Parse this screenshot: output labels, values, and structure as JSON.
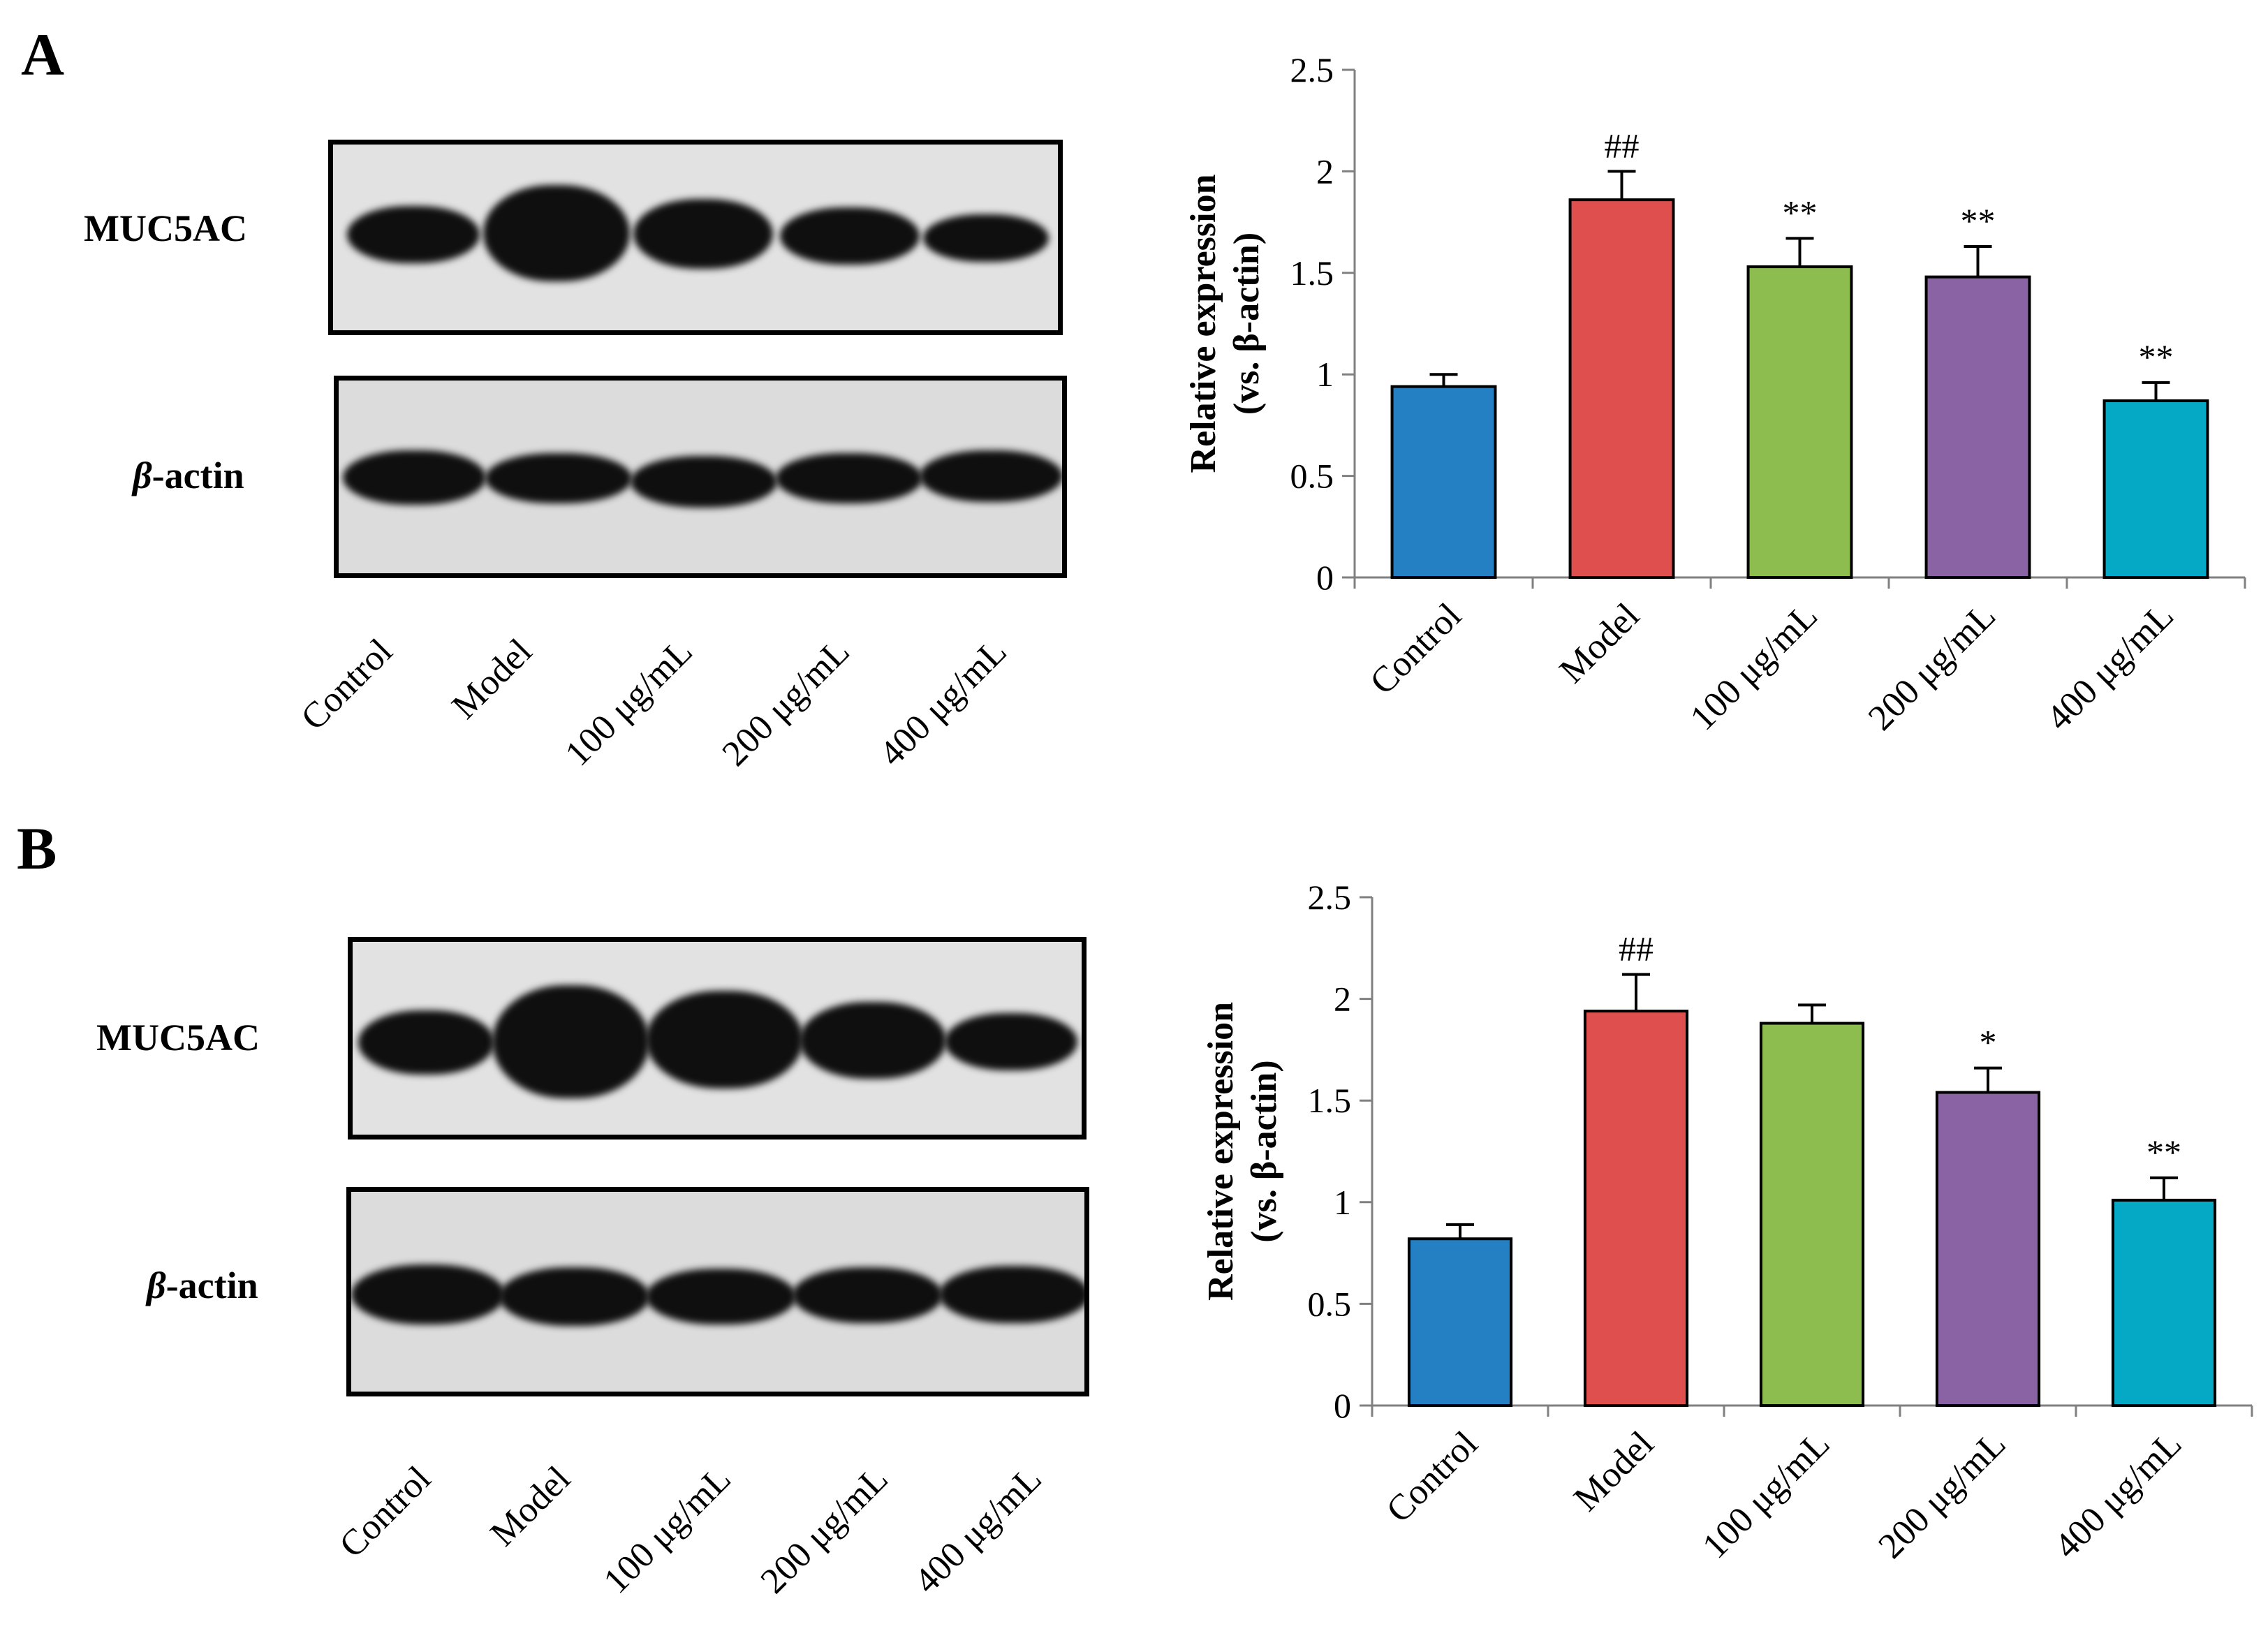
{
  "panels": [
    {
      "letter": "A",
      "blot": {
        "row_labels": {
          "muc5ac": "MUC5AC",
          "actin_prefix": "β",
          "actin_suffix": "-actin"
        },
        "lanes": [
          "Control",
          "Model",
          "100 μg/mL",
          "200 μg/mL",
          "400 μg/mL"
        ]
      }
    },
    {
      "letter": "B",
      "blot": {
        "row_labels": {
          "muc5ac": "MUC5AC",
          "actin_prefix": "β",
          "actin_suffix": "-actin"
        },
        "lanes": [
          "Control",
          "Model",
          "100 μg/mL",
          "200 μg/mL",
          "400 μg/mL"
        ]
      }
    }
  ],
  "chart_data": [
    {
      "type": "bar",
      "panel": "A",
      "categories": [
        "Control",
        "Model",
        "100 μg/mL",
        "200 μg/mL",
        "400 μg/mL"
      ],
      "values": [
        0.94,
        1.86,
        1.53,
        1.48,
        0.87
      ],
      "errors": [
        0.06,
        0.14,
        0.14,
        0.15,
        0.09
      ],
      "annotations": [
        "",
        "##",
        "**",
        "**",
        "**"
      ],
      "colors": [
        "#2580c3",
        "#df4f4e",
        "#8ebd4f",
        "#8a63a5",
        "#05a9c6"
      ],
      "ylabel_line1": "Relative expression",
      "ylabel_line2": "(vs. β-actin)",
      "ylim": [
        0,
        2.5
      ],
      "yticks": [
        0,
        0.5,
        1,
        1.5,
        2,
        2.5
      ],
      "ytick_labels": [
        "0",
        "0.5",
        "1",
        "1.5",
        "2",
        "2.5"
      ],
      "grid": false
    },
    {
      "type": "bar",
      "panel": "B",
      "categories": [
        "Control",
        "Model",
        "100 μg/mL",
        "200 μg/mL",
        "400 μg/mL"
      ],
      "values": [
        0.82,
        1.94,
        1.88,
        1.54,
        1.01
      ],
      "errors": [
        0.07,
        0.18,
        0.09,
        0.12,
        0.11
      ],
      "annotations": [
        "",
        "##",
        "",
        "*",
        "**"
      ],
      "colors": [
        "#2580c3",
        "#df4f4e",
        "#8ebd4f",
        "#8a63a5",
        "#05a9c6"
      ],
      "ylabel_line1": "Relative expression",
      "ylabel_line2": "(vs. β-actin)",
      "ylim": [
        0,
        2.5
      ],
      "yticks": [
        0,
        0.5,
        1,
        1.5,
        2,
        2.5
      ],
      "ytick_labels": [
        "0",
        "0.5",
        "1",
        "1.5",
        "2",
        "2.5"
      ],
      "grid": false
    }
  ]
}
